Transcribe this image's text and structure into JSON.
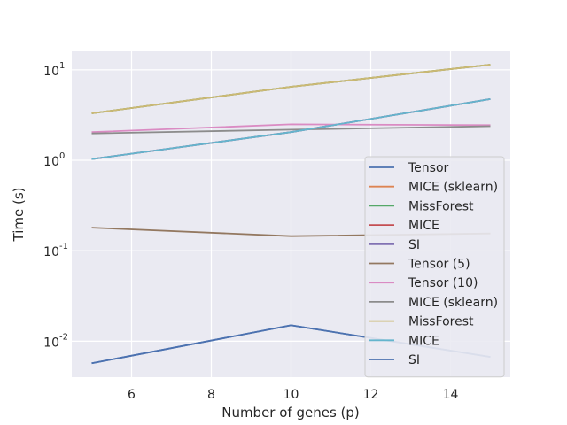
{
  "chart_data": {
    "type": "line",
    "title": "",
    "xlabel": "Number of genes (p)",
    "ylabel": "Time (s)",
    "xscale": "linear",
    "yscale": "log",
    "xlim": [
      4.5,
      15.5
    ],
    "ylim": [
      0.004,
      16
    ],
    "x_ticks": [
      6,
      8,
      10,
      12,
      14
    ],
    "y_ticks": [
      {
        "value": 0.01,
        "base": "10",
        "exp": "-2"
      },
      {
        "value": 0.1,
        "base": "10",
        "exp": "-1"
      },
      {
        "value": 1,
        "base": "10",
        "exp": "0"
      },
      {
        "value": 10,
        "base": "10",
        "exp": "1"
      }
    ],
    "grid": true,
    "legend_position": "lower-right",
    "x": [
      5,
      10,
      15
    ],
    "series": [
      {
        "name": "Tensor",
        "color": "#4c72b0",
        "values": [
          0.0057,
          0.015,
          0.0067
        ]
      },
      {
        "name": "MICE (sklearn)",
        "color": "#dd8452",
        "values": [
          3.3,
          6.5,
          11.4
        ]
      },
      {
        "name": "MissForest",
        "color": "#55a868",
        "values": [
          3.3,
          6.5,
          11.4
        ]
      },
      {
        "name": "MICE",
        "color": "#c44e52",
        "values": [
          1.03,
          2.05,
          4.75
        ]
      },
      {
        "name": "SI",
        "color": "#8172b3",
        "values": [
          1.03,
          2.05,
          4.75
        ]
      },
      {
        "name": "Tensor (5)",
        "color": "#937860",
        "values": [
          0.18,
          0.145,
          0.155
        ]
      },
      {
        "name": "Tensor (10)",
        "color": "#da8bc3",
        "values": [
          2.05,
          2.5,
          2.45
        ]
      },
      {
        "name": "MICE (sklearn)",
        "color": "#8c8c8c",
        "values": [
          1.98,
          2.18,
          2.38
        ]
      },
      {
        "name": "MissForest",
        "color": "#ccb974",
        "values": [
          3.3,
          6.5,
          11.4
        ]
      },
      {
        "name": "MICE",
        "color": "#64b5cd",
        "values": [
          1.03,
          2.05,
          4.75
        ]
      },
      {
        "name": "SI",
        "color": "#4c72b0",
        "values": [
          0.0057,
          0.015,
          0.0067
        ]
      }
    ]
  }
}
